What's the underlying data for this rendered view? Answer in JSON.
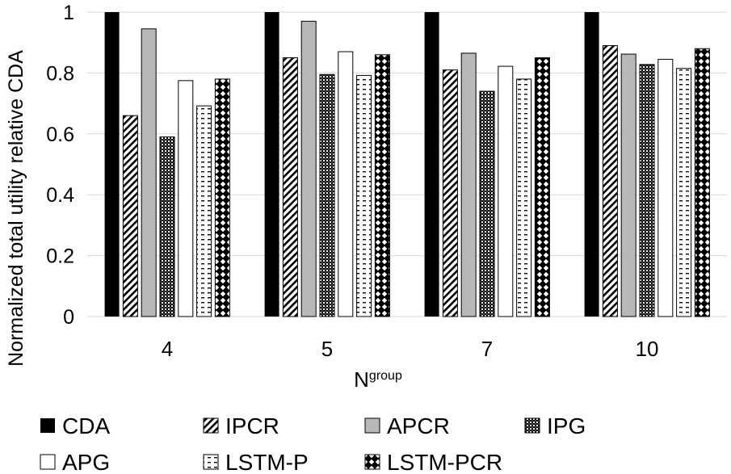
{
  "chart_data": {
    "type": "bar",
    "title": "",
    "ylabel": "Normalized total utility relative CDA",
    "xlabel_main": "N",
    "xlabel_sup": "group",
    "categories": [
      "4",
      "5",
      "7",
      "10"
    ],
    "ylim": [
      0,
      1
    ],
    "yticks": [
      "0",
      "0.2",
      "0.4",
      "0.6",
      "0.8",
      "1"
    ],
    "ytick_values": [
      0,
      0.2,
      0.4,
      0.6,
      0.8,
      1
    ],
    "grid": true,
    "legend_position": "bottom",
    "series": [
      {
        "name": "CDA",
        "pattern": "solid",
        "values": [
          1.0,
          1.0,
          1.0,
          1.0
        ]
      },
      {
        "name": "IPCR",
        "pattern": "diag",
        "values": [
          0.66,
          0.85,
          0.81,
          0.89
        ]
      },
      {
        "name": "APCR",
        "pattern": "gray",
        "values": [
          0.945,
          0.97,
          0.865,
          0.862
        ]
      },
      {
        "name": "IPG",
        "pattern": "check",
        "values": [
          0.59,
          0.795,
          0.74,
          0.828
        ]
      },
      {
        "name": "APG",
        "pattern": "white",
        "values": [
          0.775,
          0.87,
          0.822,
          0.845
        ]
      },
      {
        "name": "LSTM-P",
        "pattern": "dash",
        "values": [
          0.692,
          0.792,
          0.78,
          0.815
        ]
      },
      {
        "name": "LSTM-PCR",
        "pattern": "diamond",
        "values": [
          0.78,
          0.86,
          0.85,
          0.88
        ]
      }
    ]
  },
  "colors": {
    "solid": "#000000",
    "gray": "#b8b8b8",
    "grid": "#d9d9d9",
    "outline": "#000000"
  }
}
